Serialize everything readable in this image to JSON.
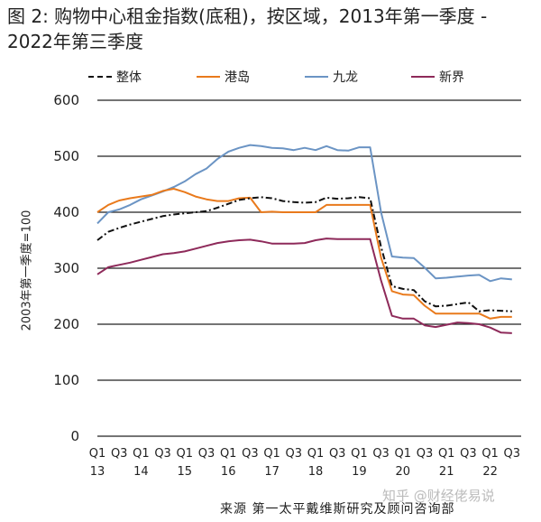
{
  "chart_data": {
    "type": "line",
    "title": "图 2: 购物中心租金指数(底租)，按区域，2013年第一季度 - 2022年第三季度",
    "ylabel": "2003年第一季度=100",
    "xlabel": "",
    "ylim": [
      0,
      600
    ],
    "yticks": [
      "0",
      "100",
      "200",
      "300",
      "400",
      "500",
      "600"
    ],
    "grid": "horizontal",
    "legend_position": "top",
    "x_tick_labels": [
      {
        "q": "Q1",
        "y": "13"
      },
      {
        "q": "Q3",
        "y": ""
      },
      {
        "q": "Q1",
        "y": "14"
      },
      {
        "q": "Q3",
        "y": ""
      },
      {
        "q": "Q1",
        "y": "15"
      },
      {
        "q": "Q3",
        "y": ""
      },
      {
        "q": "Q1",
        "y": "16"
      },
      {
        "q": "Q3",
        "y": ""
      },
      {
        "q": "Q1",
        "y": "17"
      },
      {
        "q": "Q3",
        "y": ""
      },
      {
        "q": "Q1",
        "y": "18"
      },
      {
        "q": "Q3",
        "y": ""
      },
      {
        "q": "Q1",
        "y": "19"
      },
      {
        "q": "Q3",
        "y": ""
      },
      {
        "q": "Q1",
        "y": "20"
      },
      {
        "q": "Q3",
        "y": ""
      },
      {
        "q": "Q1",
        "y": "21"
      },
      {
        "q": "Q3",
        "y": ""
      },
      {
        "q": "Q1",
        "y": "22"
      },
      {
        "q": "Q3",
        "y": ""
      }
    ],
    "x": [
      "2013Q1",
      "2013Q2",
      "2013Q3",
      "2013Q4",
      "2014Q1",
      "2014Q2",
      "2014Q3",
      "2014Q4",
      "2015Q1",
      "2015Q2",
      "2015Q3",
      "2015Q4",
      "2016Q1",
      "2016Q2",
      "2016Q3",
      "2016Q4",
      "2017Q1",
      "2017Q2",
      "2017Q3",
      "2017Q4",
      "2018Q1",
      "2018Q2",
      "2018Q3",
      "2018Q4",
      "2019Q1",
      "2019Q2",
      "2019Q3",
      "2019Q4",
      "2020Q1",
      "2020Q2",
      "2020Q3",
      "2020Q4",
      "2021Q1",
      "2021Q2",
      "2021Q3",
      "2021Q4",
      "2022Q1",
      "2022Q2",
      "2022Q3"
    ],
    "series": [
      {
        "name": "整体",
        "color": "#111111",
        "dash": "dashdot",
        "values": [
          350,
          365,
          372,
          378,
          383,
          388,
          393,
          396,
          398,
          400,
          402,
          408,
          415,
          422,
          425,
          427,
          425,
          420,
          418,
          417,
          418,
          426,
          424,
          425,
          427,
          425,
          338,
          268,
          263,
          261,
          241,
          232,
          233,
          236,
          239,
          223,
          225,
          224,
          223
        ]
      },
      {
        "name": "港岛",
        "color": "#e97a1c",
        "dash": "solid",
        "values": [
          400,
          413,
          421,
          425,
          428,
          431,
          438,
          442,
          436,
          428,
          423,
          420,
          420,
          425,
          426,
          400,
          401,
          400,
          400,
          400,
          400,
          413,
          413,
          413,
          413,
          413,
          319,
          259,
          253,
          252,
          233,
          219,
          219,
          219,
          219,
          219,
          210,
          213,
          213
        ]
      },
      {
        "name": "九龙",
        "color": "#6b94c4",
        "dash": "solid",
        "values": [
          380,
          400,
          405,
          413,
          423,
          430,
          437,
          445,
          455,
          468,
          478,
          495,
          508,
          515,
          520,
          518,
          515,
          514,
          511,
          515,
          511,
          518,
          511,
          510,
          516,
          516,
          400,
          321,
          319,
          318,
          301,
          282,
          283,
          285,
          287,
          288,
          277,
          282,
          280
        ]
      },
      {
        "name": "新界",
        "color": "#8e2a5a",
        "dash": "solid",
        "values": [
          289,
          302,
          306,
          310,
          315,
          320,
          325,
          327,
          330,
          335,
          340,
          345,
          348,
          350,
          351,
          348,
          344,
          344,
          344,
          345,
          350,
          353,
          352,
          352,
          352,
          352,
          278,
          215,
          210,
          210,
          198,
          195,
          199,
          203,
          202,
          200,
          194,
          185,
          184
        ]
      }
    ]
  },
  "source": "来源 第一太平戴维斯研究及顾问咨询部",
  "watermark": "知乎 @财经佬易说"
}
